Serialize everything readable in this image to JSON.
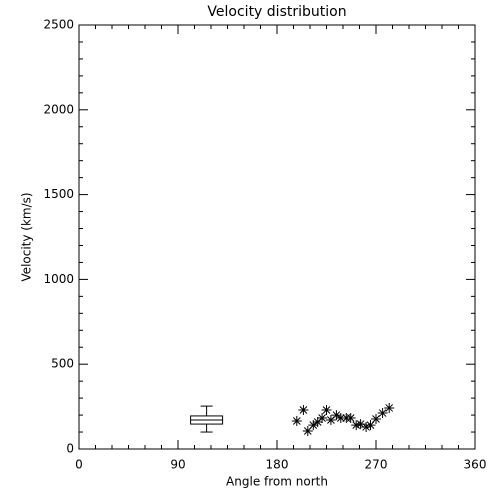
{
  "chart_data": {
    "type": "scatter",
    "title": "Velocity distribution",
    "x_label": "Angle from north",
    "y_label": "Velocity (km/s)",
    "x": [
      198,
      204,
      208,
      213,
      217,
      221,
      225,
      229,
      234,
      238,
      243,
      247,
      252,
      256,
      261,
      265,
      270,
      276,
      282
    ],
    "y": [
      165,
      230,
      106,
      141,
      159,
      183,
      230,
      171,
      200,
      183,
      183,
      183,
      141,
      147,
      130,
      141,
      177,
      212,
      242
    ],
    "box": {
      "x": 116,
      "whisker_low": 100,
      "q1": 147,
      "median": 171,
      "q3": 195,
      "whisker_high": 253
    },
    "color": "#000000",
    "xlim": [
      0,
      360
    ],
    "xticks": [
      0,
      90,
      180,
      270,
      360
    ],
    "ylim": [
      0,
      2500
    ],
    "yticks": [
      0,
      500,
      1000,
      1500,
      2000,
      2500
    ],
    "grid": false
  }
}
